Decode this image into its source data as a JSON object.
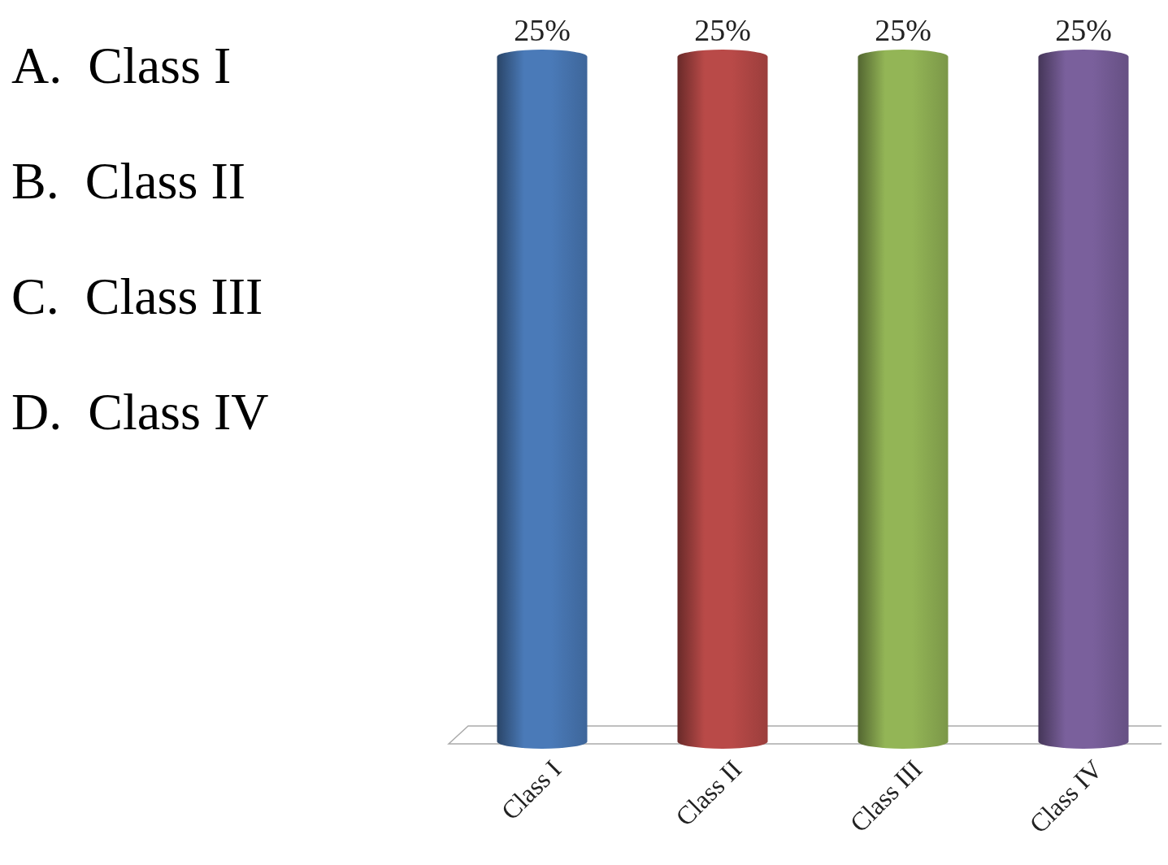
{
  "chart_data": {
    "type": "bar",
    "categories": [
      "Class I",
      "Class II",
      "Class III",
      "Class IV"
    ],
    "values": [
      25,
      25,
      25,
      25
    ],
    "colors": [
      "#4a7ab8",
      "#b94a48",
      "#93b556",
      "#7a609c"
    ],
    "value_labels": [
      "25%",
      "25%",
      "25%",
      "25%"
    ],
    "annotations": [
      "A.  Class I",
      "B.  Class II",
      "C.  Class III",
      "D.  Class IV"
    ]
  }
}
